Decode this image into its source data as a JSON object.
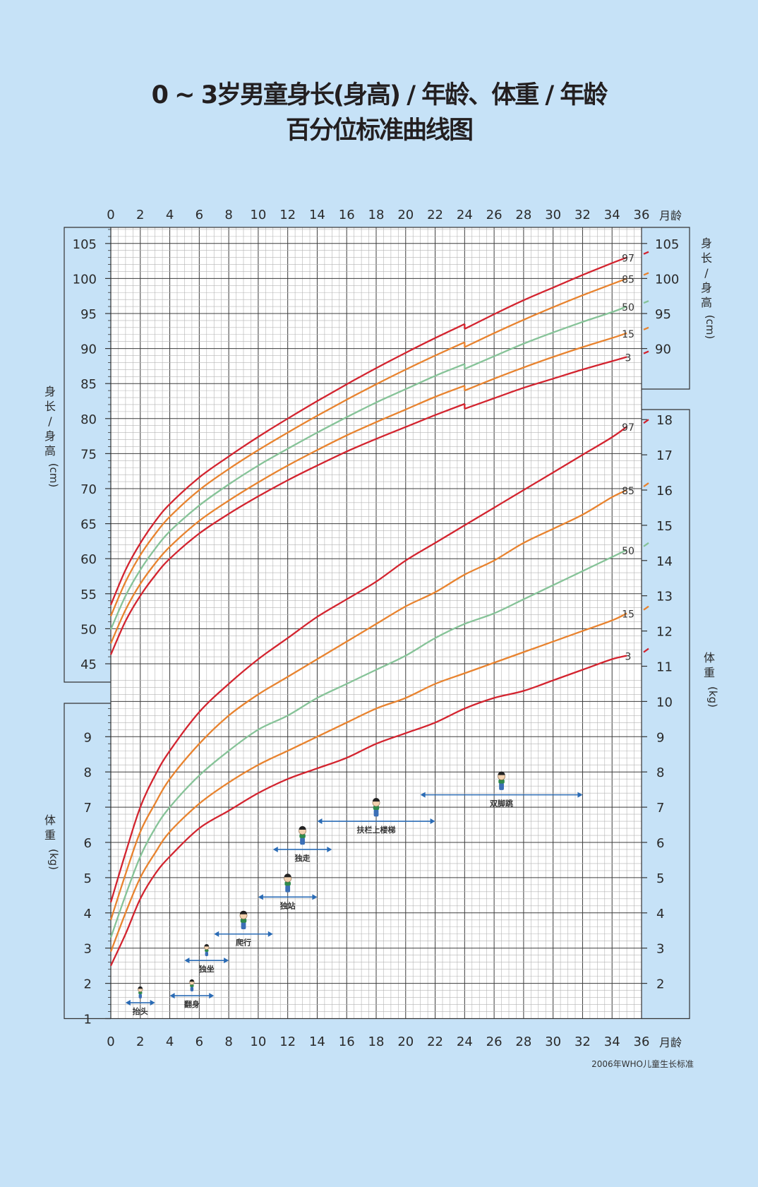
{
  "title": {
    "line1": "0 ~ 3岁男童身长(身高) / 年龄、体重 / 年龄",
    "line2": "百分位标准曲线图"
  },
  "source": "2006年WHO儿童生长标准",
  "colors": {
    "background": "#c6e2f7",
    "grid_major": "#3c3c3c",
    "grid_minor": "#b4b4b4",
    "p97": "#d3242f",
    "p85": "#e8832f",
    "p50": "#86c398",
    "p15": "#e8832f",
    "p3": "#d3242f",
    "milestone_arrow": "#2a6bb5"
  },
  "chart_data": [
    {
      "type": "line",
      "title": "身长(身高) / 年龄",
      "xlabel": "月龄",
      "ylabel": "身长 / 身高 (cm)",
      "xlim": [
        0,
        36
      ],
      "ylim": [
        45,
        105
      ],
      "x_ticks": [
        0,
        2,
        4,
        6,
        8,
        10,
        12,
        14,
        16,
        18,
        20,
        22,
        24,
        26,
        28,
        30,
        32,
        34,
        36
      ],
      "y_ticks_left": [
        45,
        50,
        55,
        60,
        65,
        70,
        75,
        80,
        85,
        90,
        95,
        100,
        105
      ],
      "y_ticks_right": [
        90,
        95,
        100,
        105
      ],
      "grid": true,
      "x": [
        0,
        1,
        2,
        3,
        4,
        6,
        8,
        10,
        12,
        14,
        16,
        18,
        20,
        22,
        24,
        24,
        26,
        28,
        30,
        32,
        34,
        35
      ],
      "series": [
        {
          "name": "97",
          "values": [
            53.4,
            58.4,
            62.2,
            65.3,
            67.8,
            71.6,
            74.6,
            77.4,
            80.0,
            82.5,
            84.9,
            87.2,
            89.4,
            91.5,
            93.5,
            92.8,
            94.9,
            96.9,
            98.7,
            100.5,
            102.2,
            103.0
          ]
        },
        {
          "name": "85",
          "values": [
            51.8,
            56.7,
            60.5,
            63.5,
            66.0,
            69.8,
            72.8,
            75.5,
            78.0,
            80.4,
            82.7,
            84.9,
            87.0,
            89.0,
            90.9,
            90.2,
            92.2,
            94.1,
            95.9,
            97.6,
            99.2,
            100.0
          ]
        },
        {
          "name": "50",
          "values": [
            49.9,
            54.7,
            58.4,
            61.4,
            63.9,
            67.6,
            70.6,
            73.3,
            75.7,
            78.0,
            80.2,
            82.3,
            84.2,
            86.1,
            87.8,
            87.1,
            88.9,
            90.7,
            92.3,
            93.8,
            95.2,
            96.0
          ]
        },
        {
          "name": "15",
          "values": [
            47.9,
            52.7,
            56.4,
            59.3,
            61.7,
            65.4,
            68.3,
            70.9,
            73.3,
            75.5,
            77.6,
            79.5,
            81.3,
            83.1,
            84.7,
            84.0,
            85.7,
            87.3,
            88.8,
            90.2,
            91.5,
            92.2
          ]
        },
        {
          "name": "3",
          "values": [
            46.3,
            51.1,
            54.7,
            57.6,
            60.0,
            63.6,
            66.4,
            68.9,
            71.2,
            73.3,
            75.3,
            77.1,
            78.8,
            80.5,
            82.1,
            81.4,
            82.9,
            84.4,
            85.7,
            87.0,
            88.2,
            88.8
          ]
        }
      ]
    },
    {
      "type": "line",
      "title": "体重 / 年龄",
      "xlabel": "月龄",
      "ylabel": "体重 (kg)",
      "xlim": [
        0,
        36
      ],
      "ylim": [
        1,
        18
      ],
      "x_ticks": [
        0,
        2,
        4,
        6,
        8,
        10,
        12,
        14,
        16,
        18,
        20,
        22,
        24,
        26,
        28,
        30,
        32,
        34,
        36
      ],
      "y_ticks_left": [
        1,
        2,
        3,
        4,
        5,
        6,
        7,
        8,
        9
      ],
      "y_ticks_right": [
        2,
        3,
        4,
        5,
        6,
        7,
        8,
        9,
        10,
        11,
        12,
        13,
        14,
        15,
        16,
        17,
        18
      ],
      "grid": true,
      "x": [
        0,
        1,
        2,
        3,
        4,
        6,
        8,
        10,
        12,
        14,
        16,
        18,
        20,
        22,
        24,
        26,
        28,
        30,
        32,
        34,
        35
      ],
      "series": [
        {
          "name": "97",
          "values": [
            4.3,
            5.7,
            7.0,
            7.9,
            8.6,
            9.7,
            10.5,
            11.2,
            11.8,
            12.4,
            12.9,
            13.4,
            14.0,
            14.5,
            15.0,
            15.5,
            16.0,
            16.5,
            17.0,
            17.5,
            17.8
          ]
        },
        {
          "name": "85",
          "values": [
            3.8,
            5.1,
            6.3,
            7.1,
            7.8,
            8.8,
            9.6,
            10.2,
            10.7,
            11.2,
            11.7,
            12.2,
            12.7,
            13.1,
            13.6,
            14.0,
            14.5,
            14.9,
            15.3,
            15.8,
            16.0
          ]
        },
        {
          "name": "50",
          "values": [
            3.3,
            4.5,
            5.6,
            6.4,
            7.0,
            7.9,
            8.6,
            9.2,
            9.6,
            10.1,
            10.5,
            10.9,
            11.3,
            11.8,
            12.2,
            12.5,
            12.9,
            13.3,
            13.7,
            14.1,
            14.3
          ]
        },
        {
          "name": "15",
          "values": [
            2.9,
            4.0,
            5.0,
            5.7,
            6.3,
            7.1,
            7.7,
            8.2,
            8.6,
            9.0,
            9.4,
            9.8,
            10.1,
            10.5,
            10.8,
            11.1,
            11.4,
            11.7,
            12.0,
            12.3,
            12.5
          ]
        },
        {
          "name": "3",
          "values": [
            2.5,
            3.4,
            4.4,
            5.1,
            5.6,
            6.4,
            6.9,
            7.4,
            7.8,
            8.1,
            8.4,
            8.8,
            9.1,
            9.4,
            9.8,
            10.1,
            10.3,
            10.6,
            10.9,
            11.2,
            11.3
          ]
        }
      ]
    }
  ],
  "axis_labels": {
    "month": "月龄",
    "height_unit": "(cm)",
    "weight_unit": "(kg)",
    "height_chars": [
      "身",
      "长",
      "/",
      "身",
      "高"
    ],
    "weight_chars": [
      "体",
      "重"
    ]
  },
  "milestones": [
    {
      "label": "抬头",
      "start": 1,
      "end": 3,
      "level_kg": 1.45
    },
    {
      "label": "翻身",
      "start": 4,
      "end": 7,
      "level_kg": 1.65
    },
    {
      "label": "独坐",
      "start": 5,
      "end": 8,
      "level_kg": 2.65
    },
    {
      "label": "爬行",
      "start": 7,
      "end": 11,
      "level_kg": 3.4
    },
    {
      "label": "独站",
      "start": 10,
      "end": 14,
      "level_kg": 4.45
    },
    {
      "label": "独走",
      "start": 11,
      "end": 15,
      "level_kg": 5.8
    },
    {
      "label": "扶栏上楼梯",
      "start": 14,
      "end": 22,
      "level_kg": 6.6
    },
    {
      "label": "双脚跳",
      "start": 21,
      "end": 32,
      "level_kg": 7.35
    }
  ]
}
